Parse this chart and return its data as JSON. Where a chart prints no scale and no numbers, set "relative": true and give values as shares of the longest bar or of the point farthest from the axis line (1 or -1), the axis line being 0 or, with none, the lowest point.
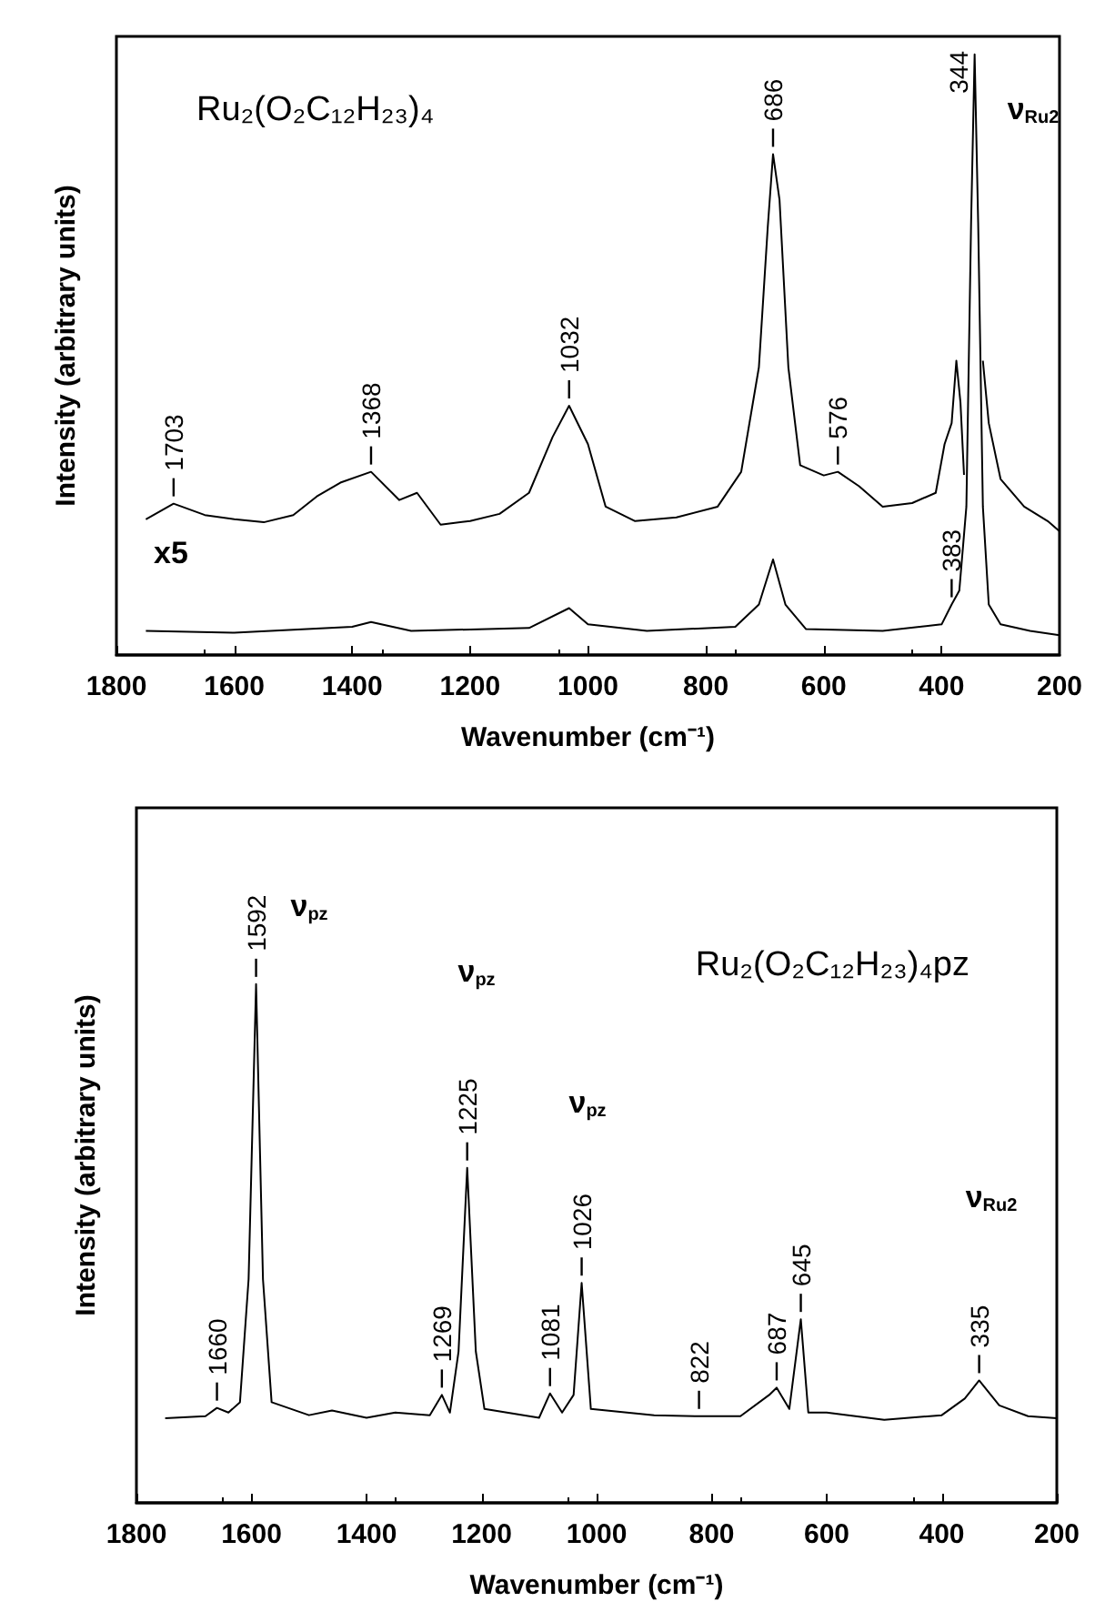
{
  "chart_data": [
    {
      "type": "line",
      "title": "Ru₂(O₂C₁₂H₂₃)₄",
      "xlabel": "Wavenumber (cm⁻¹)",
      "ylabel": "Intensity (arbitrary units)",
      "relative": true,
      "xlim": [
        1800,
        200
      ],
      "xticks": [
        1800,
        1600,
        1400,
        1200,
        1000,
        800,
        600,
        400,
        200
      ],
      "grid": false,
      "marker": "none",
      "line_style": "solid",
      "annotations": [
        "ν$_{Ru2}$",
        "x5",
        {
          "text": "1703",
          "x": 1703,
          "y": 0.252
        },
        {
          "text": "1368",
          "x": 1368,
          "y": 0.305
        },
        {
          "text": "1032",
          "x": 1032,
          "y": 0.415
        },
        {
          "text": "686",
          "x": 686,
          "y": 0.834
        },
        {
          "text": "576",
          "x": 576,
          "y": 0.305
        },
        {
          "text": "383",
          "x": 383,
          "y": 0.084
        },
        {
          "text": "344",
          "x": 344,
          "y": 1
        }
      ],
      "series": [
        {
          "color": "#000000",
          "x": [
            1750,
            1703,
            1650,
            1600,
            1550,
            1500,
            1460,
            1420,
            1368,
            1320,
            1290,
            1250,
            1200,
            1150,
            1100,
            1060,
            1032,
            1000,
            970,
            920,
            850,
            780,
            740,
            710,
            695,
            686,
            675,
            660,
            640,
            600,
            576,
            540,
            500,
            450,
            410,
            395,
            383,
            375,
            368,
            362,
            355,
            340,
            330,
            320,
            300,
            260,
            220,
            200
          ],
          "values": [
            0.226,
            0.252,
            0.233,
            0.226,
            0.221,
            0.233,
            0.264,
            0.287,
            0.305,
            0.258,
            0.27,
            0.217,
            0.223,
            0.235,
            0.27,
            0.363,
            0.415,
            0.351,
            0.247,
            0.223,
            0.229,
            0.247,
            0.305,
            0.479,
            0.712,
            0.834,
            0.758,
            0.479,
            0.316,
            0.299,
            0.305,
            0.281,
            0.247,
            0.253,
            0.27,
            0.351,
            0.386,
            0.49,
            0.42,
            0.3,
            null,
            null,
            0.49,
            0.386,
            0.293,
            0.247,
            0.223,
            0.206
          ]
        },
        {
          "color": "#000000",
          "x": [
            1750,
            1600,
            1400,
            1368,
            1300,
            1100,
            1032,
            1000,
            900,
            750,
            710,
            686,
            665,
            630,
            500,
            400,
            383,
            370,
            358,
            350,
            344,
            338,
            330,
            320,
            300,
            250,
            200
          ],
          "values": [
            0.04,
            0.037,
            0.047,
            0.055,
            0.04,
            0.045,
            0.078,
            0.051,
            0.04,
            0.047,
            0.084,
            0.159,
            0.084,
            0.043,
            0.04,
            0.051,
            0.084,
            0.107,
            0.247,
            0.72,
            1,
            0.72,
            0.247,
            0.084,
            0.051,
            0.04,
            0.033
          ]
        }
      ]
    },
    {
      "type": "line",
      "title": "Ru₂(O₂C₁₂H₂₃)₄pz",
      "xlabel": "Wavenumber (cm⁻¹)",
      "ylabel": "Intensity (arbitrary units)",
      "relative": true,
      "xlim": [
        1800,
        200
      ],
      "xticks": [
        1800,
        1600,
        1400,
        1200,
        1000,
        800,
        600,
        400,
        200
      ],
      "grid": false,
      "marker": "none",
      "line_style": "solid",
      "annotations": [
        "ν$_{pz}$",
        "ν$_{pz}$",
        "ν$_{pz}$",
        "ν$_{Ru2}$",
        {
          "text": "1660",
          "x": 1660,
          "y": 0.183
        },
        {
          "text": "1592",
          "x": 1592,
          "y": 1
        },
        {
          "text": "1269",
          "x": 1269,
          "y": 0.208
        },
        {
          "text": "1225",
          "x": 1225,
          "y": 0.646
        },
        {
          "text": "1081",
          "x": 1081,
          "y": 0.211
        },
        {
          "text": "1026",
          "x": 1026,
          "y": 0.424
        },
        {
          "text": "822",
          "x": 822,
          "y": 0.167
        },
        {
          "text": "687",
          "x": 687,
          "y": 0.222
        },
        {
          "text": "645",
          "x": 645,
          "y": 0.354
        },
        {
          "text": "335",
          "x": 335,
          "y": 0.236
        }
      ],
      "series": [
        {
          "color": "#000000",
          "x": [
            1750,
            1680,
            1660,
            1640,
            1620,
            1605,
            1592,
            1580,
            1565,
            1500,
            1460,
            1400,
            1350,
            1290,
            1269,
            1255,
            1240,
            1225,
            1210,
            1195,
            1100,
            1081,
            1060,
            1040,
            1026,
            1010,
            900,
            822,
            750,
            700,
            687,
            665,
            645,
            632,
            600,
            500,
            400,
            360,
            335,
            300,
            250,
            200
          ],
          "values": [
            0.163,
            0.167,
            0.183,
            0.174,
            0.194,
            0.431,
            1,
            0.431,
            0.194,
            0.169,
            0.178,
            0.164,
            0.174,
            0.169,
            0.208,
            0.174,
            0.292,
            0.646,
            0.292,
            0.181,
            0.164,
            0.211,
            0.174,
            0.208,
            0.424,
            0.181,
            0.169,
            0.167,
            0.167,
            0.208,
            0.222,
            0.181,
            0.354,
            0.174,
            0.174,
            0.16,
            0.169,
            0.201,
            0.236,
            0.188,
            0.167,
            0.163
          ]
        }
      ]
    }
  ]
}
